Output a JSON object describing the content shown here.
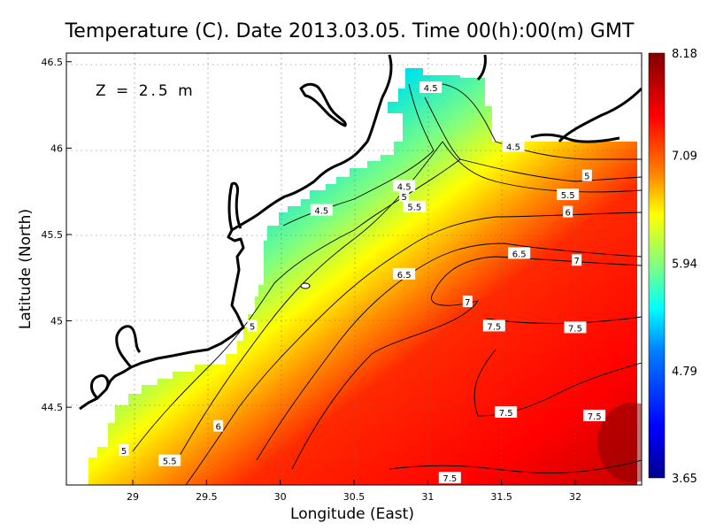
{
  "title": "Temperature (C). Date 2013.03.05. Time 00(h):00(m) GMT",
  "depth_label": "Z = 2.5 m",
  "x_axis_label": "Longitude (East)",
  "y_axis_label": "Latitude (North)",
  "x_ticks": [
    29,
    29.5,
    30,
    30.5,
    31,
    31.5,
    32
  ],
  "x_tick_labels": [
    "29",
    "29.5",
    "30",
    "30.5",
    "31",
    "31.5",
    "32"
  ],
  "y_ticks": [
    44.5,
    45,
    45.5,
    46,
    46.5
  ],
  "y_tick_labels": [
    "44.5",
    "45",
    "45.5",
    "46",
    "46.5"
  ],
  "colorbar": {
    "min": 3.65,
    "max": 8.18,
    "tick_values": [
      8.18,
      7.09,
      5.94,
      4.79,
      3.65
    ],
    "tick_labels": [
      "8.18",
      "7.09",
      "5.94",
      "4.79",
      "3.65"
    ],
    "colors": [
      "#00008f",
      "#0000ff",
      "#0080ff",
      "#00ffff",
      "#80ff80",
      "#ffff00",
      "#ff8000",
      "#ff0000",
      "#800000"
    ]
  },
  "map_extent": {
    "lon_min": 28.55,
    "lon_max": 32.45,
    "lat_min": 44.05,
    "lat_max": 46.55
  },
  "contour_labels": [
    {
      "text": "4.5",
      "lon": 31.02,
      "lat": 46.35
    },
    {
      "text": "4.5",
      "lon": 31.58,
      "lat": 46.01
    },
    {
      "text": "4.5",
      "lon": 30.84,
      "lat": 45.78
    },
    {
      "text": "4.5",
      "lon": 30.28,
      "lat": 45.64
    },
    {
      "text": "5",
      "lon": 30.84,
      "lat": 45.72
    },
    {
      "text": "5",
      "lon": 32.08,
      "lat": 45.84
    },
    {
      "text": "5",
      "lon": 29.81,
      "lat": 44.97
    },
    {
      "text": "5",
      "lon": 28.94,
      "lat": 44.25
    },
    {
      "text": "5.5",
      "lon": 30.91,
      "lat": 45.66
    },
    {
      "text": "5.5",
      "lon": 31.95,
      "lat": 45.73
    },
    {
      "text": "5.5",
      "lon": 29.25,
      "lat": 44.19
    },
    {
      "text": "6",
      "lon": 31.95,
      "lat": 45.63
    },
    {
      "text": "6",
      "lon": 29.58,
      "lat": 44.39
    },
    {
      "text": "6.5",
      "lon": 31.62,
      "lat": 45.39
    },
    {
      "text": "6.5",
      "lon": 30.84,
      "lat": 45.27
    },
    {
      "text": "7",
      "lon": 32.01,
      "lat": 45.35
    },
    {
      "text": "7",
      "lon": 31.27,
      "lat": 45.11
    },
    {
      "text": "7.5",
      "lon": 31.45,
      "lat": 44.97
    },
    {
      "text": "7.5",
      "lon": 32.0,
      "lat": 44.96
    },
    {
      "text": "7.5",
      "lon": 31.53,
      "lat": 44.47
    },
    {
      "text": "7.5",
      "lon": 32.13,
      "lat": 44.45
    },
    {
      "text": "7.5",
      "lon": 31.15,
      "lat": 44.09
    }
  ]
}
